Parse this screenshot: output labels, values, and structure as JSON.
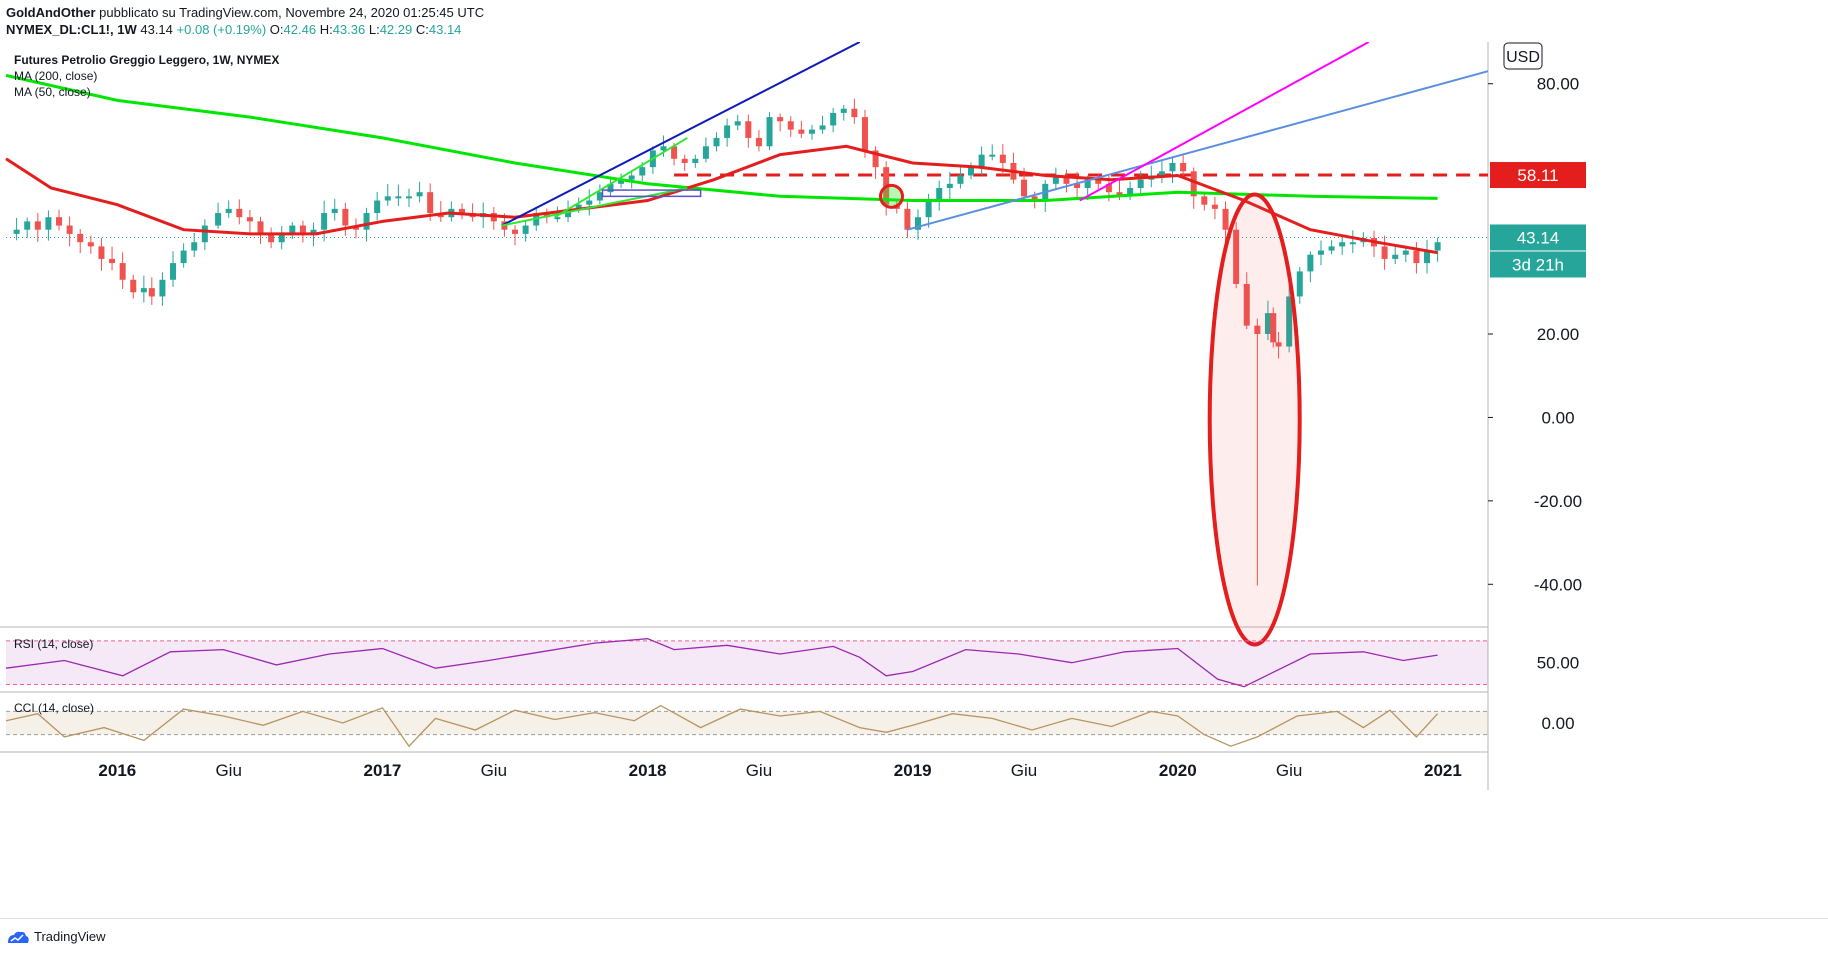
{
  "header": {
    "author": "GoldAndOther",
    "published": "pubblicato su TradingView.com, Novembre 24, 2020 01:25:45 UTC",
    "symbol": "NYMEX_DL:CL1!, 1W",
    "last": "43.14",
    "change": "+0.08 (+0.19%)",
    "open_label": "O:",
    "open": "42.46",
    "high_label": "H:",
    "high": "43.36",
    "low_label": "L:",
    "low": "42.29",
    "close_label": "C:",
    "close": "43.14"
  },
  "footer": {
    "brand": "TradingView"
  },
  "colors": {
    "up": "#26a69a",
    "down": "#ef5350",
    "ma200": "#00e600",
    "ma50": "#e41d1d",
    "rsi": "#9c27b0",
    "cci": "#b8945f"
  },
  "chart_data": [
    {
      "type": "candlestick",
      "title": "Futures Petrolio Greggio Leggero, 1W, NYMEX",
      "legend": [
        "MA (200, close)",
        "MA (50, close)"
      ],
      "currency": "USD",
      "ylim": [
        -50,
        90
      ],
      "y_ticks": [
        "80.00",
        "20.00",
        "0.00",
        "-20.00",
        "-40.00"
      ],
      "x_labels": [
        {
          "label": "2016",
          "t": 2016.0,
          "bold": true
        },
        {
          "label": "Giu",
          "t": 2016.42
        },
        {
          "label": "2017",
          "t": 2017.0,
          "bold": true
        },
        {
          "label": "Giu",
          "t": 2017.42
        },
        {
          "label": "2018",
          "t": 2018.0,
          "bold": true
        },
        {
          "label": "Giu",
          "t": 2018.42
        },
        {
          "label": "2019",
          "t": 2019.0,
          "bold": true
        },
        {
          "label": "Giu",
          "t": 2019.42
        },
        {
          "label": "2020",
          "t": 2020.0,
          "bold": true
        },
        {
          "label": "Giu",
          "t": 2020.42
        },
        {
          "label": "2021",
          "t": 2021.0,
          "bold": true
        }
      ],
      "xlim": [
        2015.58,
        2021.17
      ],
      "price_points": [
        [
          2015.58,
          44
        ],
        [
          2015.62,
          45
        ],
        [
          2015.66,
          47
        ],
        [
          2015.7,
          45
        ],
        [
          2015.74,
          48
        ],
        [
          2015.78,
          46
        ],
        [
          2015.82,
          44
        ],
        [
          2015.86,
          42
        ],
        [
          2015.9,
          41
        ],
        [
          2015.94,
          38
        ],
        [
          2015.98,
          37
        ],
        [
          2016.02,
          33
        ],
        [
          2016.06,
          30
        ],
        [
          2016.1,
          31
        ],
        [
          2016.13,
          29
        ],
        [
          2016.17,
          33
        ],
        [
          2016.21,
          37
        ],
        [
          2016.25,
          40
        ],
        [
          2016.29,
          42
        ],
        [
          2016.33,
          46
        ],
        [
          2016.38,
          49
        ],
        [
          2016.42,
          50
        ],
        [
          2016.46,
          48
        ],
        [
          2016.5,
          47
        ],
        [
          2016.54,
          44
        ],
        [
          2016.58,
          42
        ],
        [
          2016.62,
          44
        ],
        [
          2016.66,
          46
        ],
        [
          2016.7,
          44
        ],
        [
          2016.74,
          45
        ],
        [
          2016.78,
          49
        ],
        [
          2016.82,
          50
        ],
        [
          2016.86,
          46
        ],
        [
          2016.9,
          45
        ],
        [
          2016.94,
          49
        ],
        [
          2016.98,
          52
        ],
        [
          2017.02,
          53
        ],
        [
          2017.06,
          53
        ],
        [
          2017.1,
          53
        ],
        [
          2017.14,
          54
        ],
        [
          2017.18,
          49
        ],
        [
          2017.22,
          48
        ],
        [
          2017.26,
          50
        ],
        [
          2017.3,
          49
        ],
        [
          2017.34,
          48
        ],
        [
          2017.38,
          49
        ],
        [
          2017.42,
          47
        ],
        [
          2017.46,
          45
        ],
        [
          2017.5,
          44
        ],
        [
          2017.54,
          46
        ],
        [
          2017.58,
          49
        ],
        [
          2017.62,
          48
        ],
        [
          2017.66,
          48
        ],
        [
          2017.7,
          50
        ],
        [
          2017.74,
          51
        ],
        [
          2017.78,
          52
        ],
        [
          2017.82,
          54
        ],
        [
          2017.86,
          56
        ],
        [
          2017.9,
          57
        ],
        [
          2017.94,
          58
        ],
        [
          2017.98,
          60
        ],
        [
          2018.02,
          64
        ],
        [
          2018.06,
          65
        ],
        [
          2018.1,
          62
        ],
        [
          2018.14,
          61
        ],
        [
          2018.18,
          62
        ],
        [
          2018.22,
          65
        ],
        [
          2018.26,
          67
        ],
        [
          2018.3,
          70
        ],
        [
          2018.34,
          71
        ],
        [
          2018.38,
          67
        ],
        [
          2018.42,
          65
        ],
        [
          2018.46,
          72
        ],
        [
          2018.5,
          71
        ],
        [
          2018.54,
          69
        ],
        [
          2018.58,
          68
        ],
        [
          2018.62,
          69
        ],
        [
          2018.66,
          70
        ],
        [
          2018.7,
          73
        ],
        [
          2018.74,
          74
        ],
        [
          2018.78,
          72
        ],
        [
          2018.82,
          64
        ],
        [
          2018.86,
          60
        ],
        [
          2018.9,
          51
        ],
        [
          2018.94,
          50
        ],
        [
          2018.98,
          45
        ],
        [
          2019.02,
          48
        ],
        [
          2019.06,
          52
        ],
        [
          2019.1,
          55
        ],
        [
          2019.14,
          56
        ],
        [
          2019.18,
          58
        ],
        [
          2019.22,
          60
        ],
        [
          2019.26,
          63
        ],
        [
          2019.3,
          63
        ],
        [
          2019.34,
          61
        ],
        [
          2019.38,
          57
        ],
        [
          2019.42,
          53
        ],
        [
          2019.46,
          52
        ],
        [
          2019.5,
          56
        ],
        [
          2019.54,
          58
        ],
        [
          2019.58,
          56
        ],
        [
          2019.62,
          55
        ],
        [
          2019.66,
          57
        ],
        [
          2019.7,
          56
        ],
        [
          2019.74,
          54
        ],
        [
          2019.78,
          53
        ],
        [
          2019.82,
          55
        ],
        [
          2019.86,
          57
        ],
        [
          2019.9,
          58
        ],
        [
          2019.94,
          59
        ],
        [
          2019.98,
          61
        ],
        [
          2020.02,
          59
        ],
        [
          2020.06,
          53
        ],
        [
          2020.1,
          51
        ],
        [
          2020.14,
          50
        ],
        [
          2020.18,
          45
        ],
        [
          2020.22,
          32
        ],
        [
          2020.26,
          22
        ],
        [
          2020.3,
          20
        ],
        [
          2020.34,
          25
        ],
        [
          2020.36,
          18
        ],
        [
          2020.38,
          17
        ],
        [
          2020.42,
          29
        ],
        [
          2020.46,
          35
        ],
        [
          2020.5,
          39
        ],
        [
          2020.54,
          40
        ],
        [
          2020.58,
          41
        ],
        [
          2020.62,
          42
        ],
        [
          2020.66,
          42
        ],
        [
          2020.7,
          43
        ],
        [
          2020.74,
          41
        ],
        [
          2020.78,
          38
        ],
        [
          2020.82,
          39
        ],
        [
          2020.86,
          40
        ],
        [
          2020.9,
          37
        ],
        [
          2020.94,
          40
        ],
        [
          2020.98,
          42
        ]
      ],
      "wick_min": {
        "t": 2020.3,
        "low": -40.32
      },
      "ma200": [
        [
          2015.58,
          82
        ],
        [
          2016.0,
          76
        ],
        [
          2016.5,
          72
        ],
        [
          2017.0,
          67
        ],
        [
          2017.5,
          61
        ],
        [
          2018.0,
          56
        ],
        [
          2018.5,
          53
        ],
        [
          2019.0,
          52
        ],
        [
          2019.5,
          52
        ],
        [
          2020.0,
          54
        ],
        [
          2020.5,
          53
        ],
        [
          2020.98,
          52.5
        ]
      ],
      "ma50": [
        [
          2015.58,
          62
        ],
        [
          2015.75,
          55
        ],
        [
          2016.0,
          51
        ],
        [
          2016.25,
          45
        ],
        [
          2016.5,
          44
        ],
        [
          2016.75,
          44
        ],
        [
          2017.0,
          47
        ],
        [
          2017.25,
          49
        ],
        [
          2017.5,
          48
        ],
        [
          2017.75,
          50
        ],
        [
          2018.0,
          52
        ],
        [
          2018.25,
          57
        ],
        [
          2018.5,
          63
        ],
        [
          2018.75,
          65
        ],
        [
          2019.0,
          61
        ],
        [
          2019.25,
          60
        ],
        [
          2019.5,
          58
        ],
        [
          2019.75,
          57
        ],
        [
          2020.0,
          58
        ],
        [
          2020.25,
          52
        ],
        [
          2020.5,
          45
        ],
        [
          2020.75,
          42
        ],
        [
          2020.98,
          39.5
        ]
      ],
      "price_labels": [
        "58.11",
        "43.14",
        "3d 21h"
      ],
      "h_lines": [
        {
          "value": 58.11,
          "style": "dashed",
          "from": 2018.1
        }
      ],
      "last_value": 43.14
    },
    {
      "type": "line",
      "title": "RSI (14, close)",
      "ylim": [
        25,
        80
      ],
      "y_ticks": [
        "50.00"
      ],
      "bands": [
        70,
        30
      ],
      "values_t": [
        2015.58,
        2015.8,
        2016.02,
        2016.2,
        2016.4,
        2016.6,
        2016.8,
        2017.0,
        2017.2,
        2017.4,
        2017.6,
        2017.8,
        2018.0,
        2018.1,
        2018.3,
        2018.5,
        2018.7,
        2018.8,
        2018.9,
        2019.0,
        2019.2,
        2019.4,
        2019.6,
        2019.8,
        2020.0,
        2020.15,
        2020.25,
        2020.35,
        2020.5,
        2020.7,
        2020.85,
        2020.98
      ],
      "values": [
        45,
        52,
        38,
        60,
        62,
        48,
        58,
        63,
        45,
        52,
        60,
        68,
        72,
        62,
        66,
        58,
        65,
        55,
        38,
        42,
        62,
        58,
        50,
        60,
        63,
        35,
        28,
        40,
        58,
        60,
        52,
        57
      ]
    },
    {
      "type": "line",
      "title": "CCI (14, close)",
      "ylim": [
        -250,
        250
      ],
      "y_ticks": [
        "0.00"
      ],
      "bands": [
        100,
        -100
      ],
      "values_t": [
        2015.58,
        2015.7,
        2015.8,
        2015.95,
        2016.1,
        2016.25,
        2016.4,
        2016.55,
        2016.7,
        2016.85,
        2017.0,
        2017.1,
        2017.2,
        2017.35,
        2017.5,
        2017.65,
        2017.8,
        2017.95,
        2018.05,
        2018.2,
        2018.35,
        2018.5,
        2018.65,
        2018.8,
        2018.9,
        2019.0,
        2019.15,
        2019.3,
        2019.45,
        2019.6,
        2019.75,
        2019.9,
        2020.0,
        2020.1,
        2020.2,
        2020.3,
        2020.45,
        2020.6,
        2020.7,
        2020.8,
        2020.9,
        2020.98
      ],
      "values": [
        20,
        80,
        -120,
        -40,
        -150,
        120,
        60,
        -20,
        100,
        0,
        130,
        -200,
        40,
        -60,
        110,
        30,
        90,
        20,
        150,
        -40,
        120,
        60,
        100,
        -40,
        -80,
        -20,
        80,
        40,
        -60,
        40,
        -30,
        100,
        60,
        -100,
        -200,
        -120,
        60,
        100,
        -40,
        110,
        -120,
        80
      ]
    }
  ]
}
